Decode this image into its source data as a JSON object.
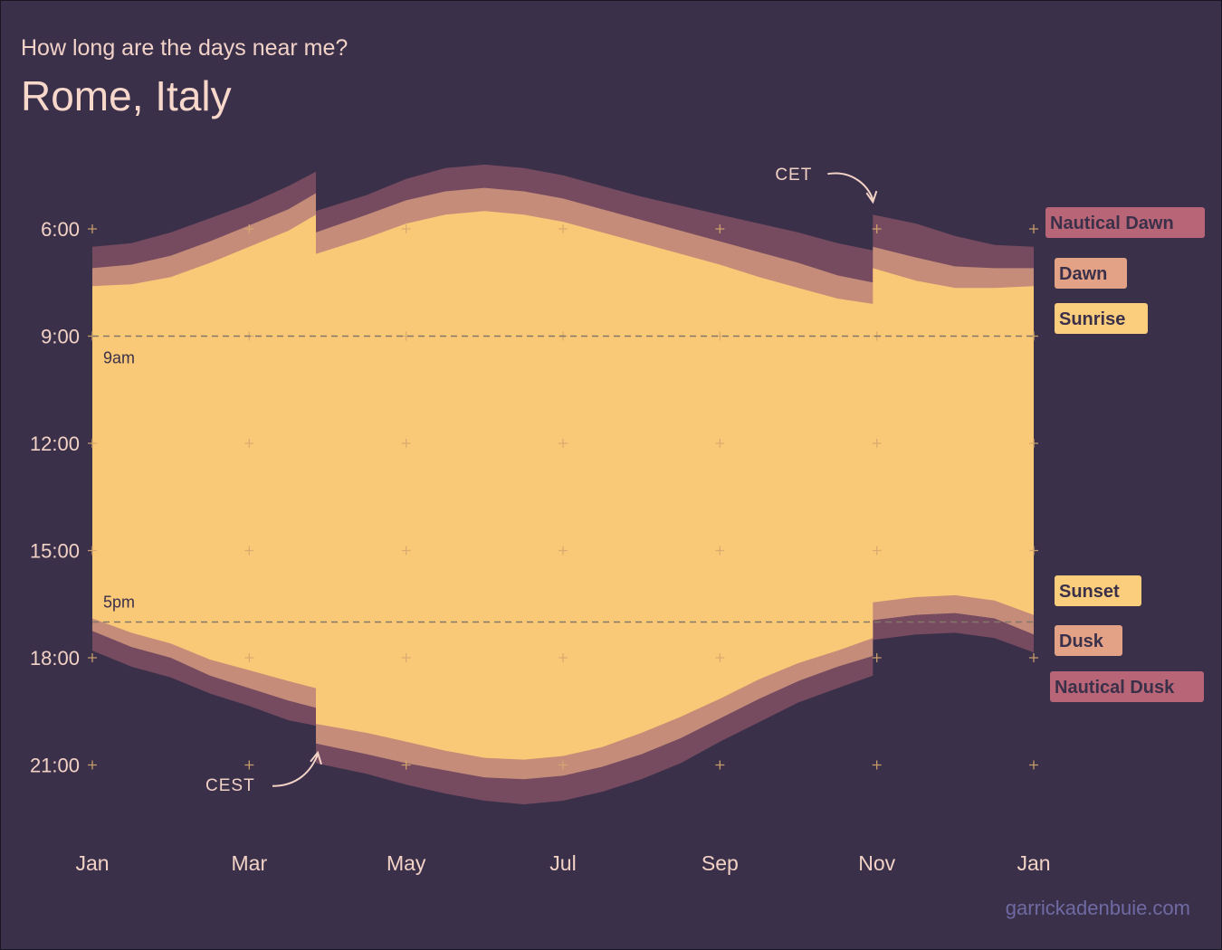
{
  "header": {
    "subtitle": "How long are the days near me?",
    "title": "Rome, Italy"
  },
  "credit": "garrickadenbuie.com",
  "chart_data": {
    "type": "area",
    "x_unit": "month",
    "y_unit": "hour of day",
    "xlim": [
      1,
      13
    ],
    "ylim": [
      3.5,
      23.7
    ],
    "y_reversed": true,
    "x_ticks": [
      {
        "label": "Jan",
        "value": 1
      },
      {
        "label": "Mar",
        "value": 3
      },
      {
        "label": "May",
        "value": 5
      },
      {
        "label": "Jul",
        "value": 7
      },
      {
        "label": "Sep",
        "value": 9
      },
      {
        "label": "Nov",
        "value": 11
      },
      {
        "label": "Jan",
        "value": 13
      }
    ],
    "y_ticks": [
      {
        "label": "6:00",
        "value": 6
      },
      {
        "label": "9:00",
        "value": 9
      },
      {
        "label": "12:00",
        "value": 12
      },
      {
        "label": "15:00",
        "value": 15
      },
      {
        "label": "18:00",
        "value": 18
      },
      {
        "label": "21:00",
        "value": 21
      }
    ],
    "reference_lines": [
      {
        "label": "9am",
        "value": 9
      },
      {
        "label": "5pm",
        "value": 17
      }
    ],
    "x": [
      1,
      1.5,
      2,
      2.5,
      3,
      3.5,
      3.85,
      3.85,
      4.5,
      5,
      5.5,
      6,
      6.5,
      7,
      7.5,
      8,
      8.5,
      9,
      9.5,
      10,
      10.5,
      10.95,
      10.95,
      11.5,
      12,
      12.5,
      13
    ],
    "series": [
      {
        "name": "Nautical Dawn",
        "color": "#764b60",
        "values": [
          6.5,
          6.4,
          6.1,
          5.7,
          5.3,
          4.8,
          4.4,
          5.5,
          5.05,
          4.6,
          4.3,
          4.2,
          4.3,
          4.5,
          4.8,
          5.1,
          5.35,
          5.6,
          5.85,
          6.1,
          6.4,
          6.6,
          5.6,
          5.85,
          6.2,
          6.45,
          6.5
        ]
      },
      {
        "name": "Dawn",
        "color": "#c48c79",
        "values": [
          7.1,
          7.0,
          6.75,
          6.35,
          5.9,
          5.45,
          5.0,
          6.1,
          5.6,
          5.2,
          4.95,
          4.85,
          4.95,
          5.15,
          5.45,
          5.75,
          6.05,
          6.35,
          6.65,
          6.95,
          7.3,
          7.5,
          6.5,
          6.8,
          7.05,
          7.1,
          7.1
        ]
      },
      {
        "name": "Sunrise",
        "color": "#f9c978",
        "values": [
          7.6,
          7.55,
          7.35,
          6.95,
          6.5,
          6.05,
          5.6,
          6.7,
          6.25,
          5.85,
          5.6,
          5.5,
          5.6,
          5.8,
          6.1,
          6.4,
          6.7,
          7.0,
          7.35,
          7.65,
          7.95,
          8.1,
          7.1,
          7.45,
          7.65,
          7.65,
          7.6
        ]
      },
      {
        "name": "Sunset",
        "color": "#f9c978",
        "values": [
          16.9,
          17.3,
          17.6,
          18.05,
          18.35,
          18.65,
          18.85,
          19.85,
          20.1,
          20.35,
          20.6,
          20.8,
          20.85,
          20.75,
          20.5,
          20.1,
          19.65,
          19.15,
          18.6,
          18.15,
          17.8,
          17.45,
          16.45,
          16.3,
          16.25,
          16.4,
          16.8
        ]
      },
      {
        "name": "Dusk",
        "color": "#c48c79",
        "values": [
          17.25,
          17.7,
          18.0,
          18.5,
          18.85,
          19.2,
          19.4,
          20.4,
          20.7,
          20.95,
          21.15,
          21.35,
          21.4,
          21.3,
          21.05,
          20.7,
          20.25,
          19.7,
          19.15,
          18.65,
          18.25,
          17.95,
          16.95,
          16.8,
          16.75,
          16.9,
          17.35
        ]
      },
      {
        "name": "Nautical Dusk",
        "color": "#764b60",
        "values": [
          17.8,
          18.25,
          18.55,
          19.0,
          19.35,
          19.75,
          19.9,
          20.95,
          21.25,
          21.55,
          21.8,
          22.0,
          22.1,
          22.0,
          21.75,
          21.4,
          20.95,
          20.35,
          19.8,
          19.25,
          18.85,
          18.5,
          17.5,
          17.35,
          17.3,
          17.45,
          17.85
        ]
      }
    ],
    "annotations": [
      {
        "label": "CET",
        "x": 10.95,
        "y": 5.6
      },
      {
        "label": "CEST",
        "x": 3.85,
        "y": 20.4
      }
    ],
    "legend_placement": "right, beside each band",
    "grid": false,
    "background": "#3a3049",
    "tick_mark_color": "#d6a86e"
  }
}
